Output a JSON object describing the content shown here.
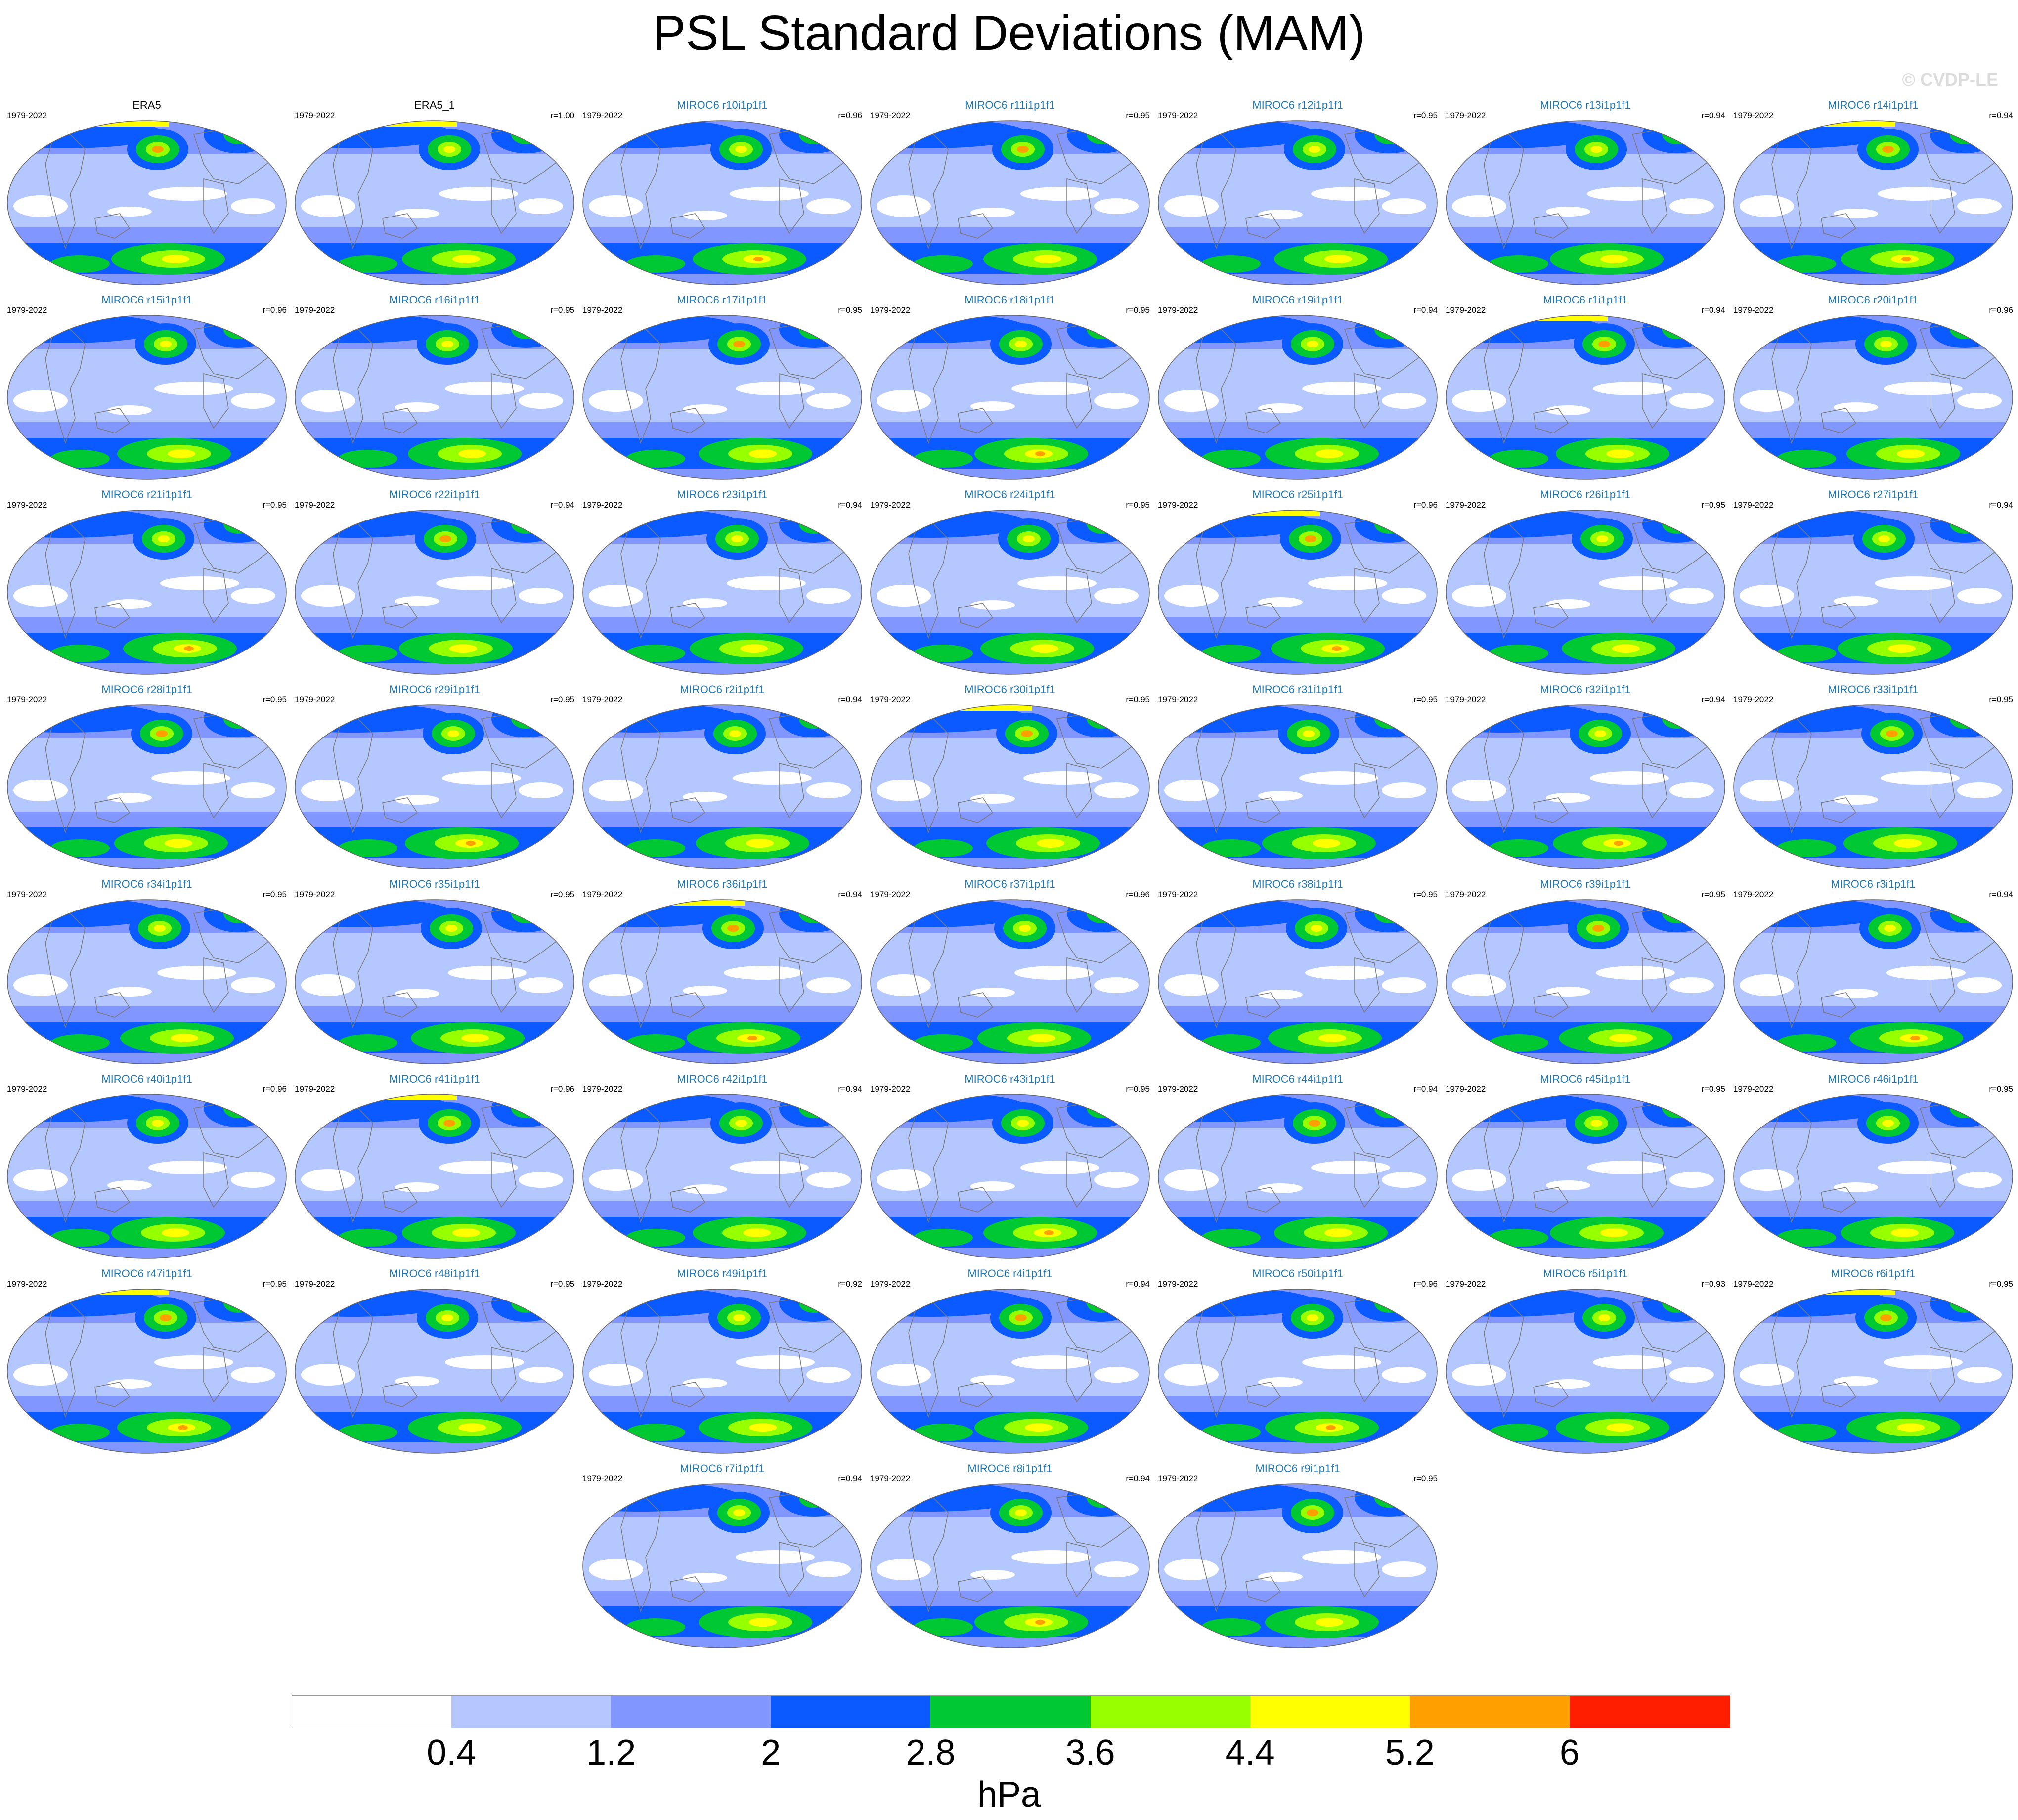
{
  "title": "PSL Standard Deviations (MAM)",
  "copyright": "© CVDP-LE",
  "years": "1979-2022",
  "colors": {
    "levels": [
      "#ffffff",
      "#b4c8ff",
      "#8296ff",
      "#0a5aff",
      "#00c832",
      "#96ff00",
      "#ffff00",
      "#ffa000",
      "#ff1e00"
    ],
    "model_title": "#1f77b4",
    "obs_title": "#000000",
    "continent_outline": "#7a7a7a"
  },
  "colorbar": {
    "labels": [
      "0.4",
      "1.2",
      "2",
      "2.8",
      "3.6",
      "4.4",
      "5.2",
      "6"
    ],
    "units": "hPa"
  },
  "panels": [
    {
      "title": "ERA5",
      "r": ""
    },
    {
      "title": "ERA5_1",
      "r": "r=1.00"
    },
    {
      "title": "MIROC6 r10i1p1f1",
      "r": "r=0.96"
    },
    {
      "title": "MIROC6 r11i1p1f1",
      "r": "r=0.95"
    },
    {
      "title": "MIROC6 r12i1p1f1",
      "r": "r=0.95"
    },
    {
      "title": "MIROC6 r13i1p1f1",
      "r": "r=0.94"
    },
    {
      "title": "MIROC6 r14i1p1f1",
      "r": "r=0.94"
    },
    {
      "title": "MIROC6 r15i1p1f1",
      "r": "r=0.96"
    },
    {
      "title": "MIROC6 r16i1p1f1",
      "r": "r=0.95"
    },
    {
      "title": "MIROC6 r17i1p1f1",
      "r": "r=0.95"
    },
    {
      "title": "MIROC6 r18i1p1f1",
      "r": "r=0.95"
    },
    {
      "title": "MIROC6 r19i1p1f1",
      "r": "r=0.94"
    },
    {
      "title": "MIROC6 r1i1p1f1",
      "r": "r=0.94"
    },
    {
      "title": "MIROC6 r20i1p1f1",
      "r": "r=0.96"
    },
    {
      "title": "MIROC6 r21i1p1f1",
      "r": "r=0.95"
    },
    {
      "title": "MIROC6 r22i1p1f1",
      "r": "r=0.94"
    },
    {
      "title": "MIROC6 r23i1p1f1",
      "r": "r=0.94"
    },
    {
      "title": "MIROC6 r24i1p1f1",
      "r": "r=0.95"
    },
    {
      "title": "MIROC6 r25i1p1f1",
      "r": "r=0.96"
    },
    {
      "title": "MIROC6 r26i1p1f1",
      "r": "r=0.95"
    },
    {
      "title": "MIROC6 r27i1p1f1",
      "r": "r=0.94"
    },
    {
      "title": "MIROC6 r28i1p1f1",
      "r": "r=0.95"
    },
    {
      "title": "MIROC6 r29i1p1f1",
      "r": "r=0.95"
    },
    {
      "title": "MIROC6 r2i1p1f1",
      "r": "r=0.94"
    },
    {
      "title": "MIROC6 r30i1p1f1",
      "r": "r=0.95"
    },
    {
      "title": "MIROC6 r31i1p1f1",
      "r": "r=0.95"
    },
    {
      "title": "MIROC6 r32i1p1f1",
      "r": "r=0.94"
    },
    {
      "title": "MIROC6 r33i1p1f1",
      "r": "r=0.95"
    },
    {
      "title": "MIROC6 r34i1p1f1",
      "r": "r=0.95"
    },
    {
      "title": "MIROC6 r35i1p1f1",
      "r": "r=0.95"
    },
    {
      "title": "MIROC6 r36i1p1f1",
      "r": "r=0.94"
    },
    {
      "title": "MIROC6 r37i1p1f1",
      "r": "r=0.96"
    },
    {
      "title": "MIROC6 r38i1p1f1",
      "r": "r=0.95"
    },
    {
      "title": "MIROC6 r39i1p1f1",
      "r": "r=0.95"
    },
    {
      "title": "MIROC6 r3i1p1f1",
      "r": "r=0.94"
    },
    {
      "title": "MIROC6 r40i1p1f1",
      "r": "r=0.96"
    },
    {
      "title": "MIROC6 r41i1p1f1",
      "r": "r=0.96"
    },
    {
      "title": "MIROC6 r42i1p1f1",
      "r": "r=0.94"
    },
    {
      "title": "MIROC6 r43i1p1f1",
      "r": "r=0.95"
    },
    {
      "title": "MIROC6 r44i1p1f1",
      "r": "r=0.94"
    },
    {
      "title": "MIROC6 r45i1p1f1",
      "r": "r=0.95"
    },
    {
      "title": "MIROC6 r46i1p1f1",
      "r": "r=0.95"
    },
    {
      "title": "MIROC6 r47i1p1f1",
      "r": "r=0.95"
    },
    {
      "title": "MIROC6 r48i1p1f1",
      "r": "r=0.95"
    },
    {
      "title": "MIROC6 r49i1p1f1",
      "r": "r=0.92"
    },
    {
      "title": "MIROC6 r4i1p1f1",
      "r": "r=0.94"
    },
    {
      "title": "MIROC6 r50i1p1f1",
      "r": "r=0.96"
    },
    {
      "title": "MIROC6 r5i1p1f1",
      "r": "r=0.93"
    },
    {
      "title": "MIROC6 r6i1p1f1",
      "r": "r=0.95"
    },
    {
      "title": "MIROC6 r7i1p1f1",
      "r": "r=0.94"
    },
    {
      "title": "MIROC6 r8i1p1f1",
      "r": "r=0.94"
    },
    {
      "title": "MIROC6 r9i1p1f1",
      "r": "r=0.95"
    }
  ]
}
